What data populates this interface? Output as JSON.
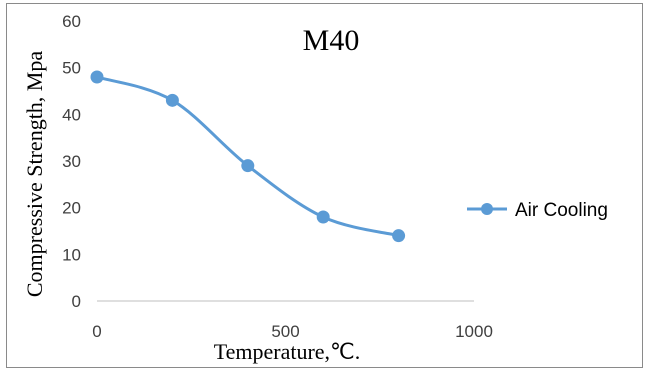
{
  "chart_data": {
    "type": "line",
    "title": "M40",
    "xlabel": "Temperature,℃.",
    "ylabel": "Compressive Strength, Mpa",
    "xlim": [
      0,
      1000
    ],
    "ylim": [
      0,
      60
    ],
    "x_ticks": [
      "0",
      "500",
      "1000"
    ],
    "y_ticks": [
      "0",
      "10",
      "20",
      "30",
      "40",
      "50",
      "60"
    ],
    "grid": false,
    "smooth": true,
    "legend_position": "right",
    "series": [
      {
        "name": "Air Cooling",
        "color": "#5b9bd5",
        "x": [
          0,
          200,
          400,
          600,
          800
        ],
        "y": [
          48,
          43,
          29,
          18,
          14
        ]
      }
    ]
  }
}
